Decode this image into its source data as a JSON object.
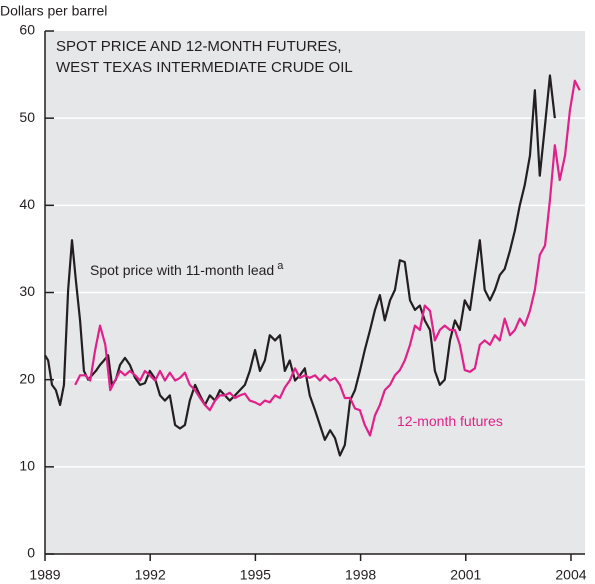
{
  "chart_data": {
    "type": "line",
    "title": [
      "SPOT PRICE AND 12-MONTH FUTURES,",
      "WEST TEXAS INTERMEDIATE CRUDE OIL"
    ],
    "ylabel": "Dollars per barrel",
    "xlim": [
      1989,
      2004.4
    ],
    "ylim": [
      0,
      60
    ],
    "xticks": [
      1989,
      1992,
      1995,
      1998,
      2001,
      2004
    ],
    "yticks": [
      0,
      10,
      20,
      30,
      40,
      50,
      60
    ],
    "grid": true,
    "series": [
      {
        "name": "Spot price with 11-month lead",
        "footnote_marker": "a",
        "color": "#231f20",
        "x": [
          1989.0,
          1989.09,
          1989.2,
          1989.31,
          1989.43,
          1989.54,
          1989.66,
          1989.77,
          1989.88,
          1990.0,
          1990.11,
          1990.23,
          1990.34,
          1990.45,
          1990.57,
          1990.68,
          1990.8,
          1990.91,
          1991.02,
          1991.14,
          1991.28,
          1991.42,
          1991.57,
          1991.71,
          1991.85,
          1991.99,
          1992.14,
          1992.28,
          1992.42,
          1992.56,
          1992.71,
          1992.85,
          1992.99,
          1993.13,
          1993.28,
          1993.42,
          1993.56,
          1993.7,
          1993.85,
          1993.99,
          1994.13,
          1994.27,
          1994.42,
          1994.56,
          1994.7,
          1994.84,
          1994.99,
          1995.13,
          1995.27,
          1995.41,
          1995.56,
          1995.7,
          1995.84,
          1995.98,
          1996.13,
          1996.27,
          1996.41,
          1996.55,
          1996.7,
          1996.84,
          1996.98,
          1997.13,
          1997.27,
          1997.41,
          1997.55,
          1997.7,
          1997.84,
          1997.98,
          1998.12,
          1998.27,
          1998.41,
          1998.55,
          1998.69,
          1998.84,
          1998.98,
          1999.12,
          1999.26,
          1999.41,
          1999.55,
          1999.69,
          1999.83,
          1999.98,
          2000.12,
          2000.26,
          2000.4,
          2000.55,
          2000.69,
          2000.83,
          2000.97,
          2001.12,
          2001.26,
          2001.4,
          2001.54,
          2001.69,
          2001.83,
          2001.97,
          2002.11,
          2002.26,
          2002.4,
          2002.54,
          2002.68,
          2002.83,
          2002.97,
          2003.11,
          2003.26,
          2003.4,
          2003.54
        ],
        "values": [
          22.8,
          22.2,
          19.4,
          18.8,
          17.1,
          19.4,
          30.3,
          36,
          31.4,
          26.8,
          21,
          20,
          20.5,
          21,
          21.7,
          22.2,
          22.8,
          19.4,
          20,
          21.7,
          22.5,
          21.7,
          20.2,
          19.4,
          19.6,
          21,
          20.1,
          18.2,
          17.6,
          18.2,
          14.8,
          14.4,
          14.8,
          17.6,
          19.4,
          18.2,
          17.1,
          18.2,
          17.6,
          18.8,
          18.2,
          17.6,
          18.2,
          18.8,
          19.4,
          21,
          23.4,
          21,
          22.2,
          25.1,
          24.5,
          25.1,
          21,
          22.2,
          19.9,
          20.5,
          21.3,
          18.2,
          16.5,
          14.8,
          13.1,
          14.2,
          13.3,
          11.3,
          12.5,
          17.6,
          18.8,
          21,
          23.4,
          25.7,
          28,
          29.7,
          26.8,
          29.1,
          30.3,
          33.7,
          33.5,
          29.1,
          28,
          28.5,
          26.8,
          25.7,
          21,
          19.4,
          20,
          24.5,
          26.8,
          25.7,
          29.1,
          28,
          32,
          36,
          30.3,
          29.1,
          30.3,
          32,
          32.7,
          34.8,
          37.1,
          40,
          42.3,
          45.7,
          53.2,
          43.4,
          49.2,
          54.9,
          50
        ]
      },
      {
        "name": "12-month futures",
        "color": "#e0218a",
        "x": [
          1989.86,
          1990.0,
          1990.15,
          1990.29,
          1990.43,
          1990.57,
          1990.72,
          1990.86,
          1991.0,
          1991.14,
          1991.28,
          1991.42,
          1991.57,
          1991.71,
          1991.85,
          1991.99,
          1992.14,
          1992.28,
          1992.42,
          1992.56,
          1992.71,
          1992.85,
          1992.99,
          1993.13,
          1993.28,
          1993.42,
          1993.56,
          1993.7,
          1993.85,
          1993.99,
          1994.13,
          1994.27,
          1994.42,
          1994.56,
          1994.7,
          1994.84,
          1994.99,
          1995.13,
          1995.27,
          1995.41,
          1995.56,
          1995.7,
          1995.84,
          1995.98,
          1996.13,
          1996.27,
          1996.41,
          1996.55,
          1996.7,
          1996.84,
          1996.98,
          1997.13,
          1997.27,
          1997.41,
          1997.55,
          1997.7,
          1997.84,
          1997.98,
          1998.12,
          1998.27,
          1998.41,
          1998.55,
          1998.69,
          1998.84,
          1998.98,
          1999.12,
          1999.26,
          1999.41,
          1999.55,
          1999.69,
          1999.83,
          1999.98,
          2000.12,
          2000.26,
          2000.4,
          2000.55,
          2000.69,
          2000.83,
          2000.97,
          2001.12,
          2001.26,
          2001.4,
          2001.54,
          2001.69,
          2001.83,
          2001.97,
          2002.11,
          2002.26,
          2002.4,
          2002.54,
          2002.68,
          2002.83,
          2002.97,
          2003.11,
          2003.26,
          2003.4,
          2003.54,
          2003.68,
          2003.83,
          2003.97,
          2004.11,
          2004.25
        ],
        "values": [
          19.4,
          20.5,
          20.5,
          19.9,
          23.4,
          26.2,
          24,
          18.8,
          19.9,
          21,
          20.5,
          21,
          20.5,
          19.9,
          21,
          20.5,
          19.9,
          21,
          19.9,
          20.8,
          19.9,
          20.2,
          20.8,
          19.4,
          18.8,
          17.9,
          17.1,
          16.5,
          17.6,
          18.2,
          18.2,
          18.5,
          17.9,
          18.2,
          18.4,
          17.6,
          17.4,
          17.1,
          17.6,
          17.4,
          18.2,
          17.9,
          19.1,
          19.9,
          21.3,
          20.2,
          20.5,
          20.2,
          20.5,
          19.9,
          20.5,
          19.9,
          20.2,
          19.4,
          17.9,
          17.9,
          16.7,
          16.5,
          14.8,
          13.6,
          15.9,
          17.1,
          18.8,
          19.4,
          20.5,
          21.1,
          22.2,
          24,
          26.2,
          25.7,
          28.5,
          27.9,
          24.5,
          25.7,
          26.2,
          25.7,
          25.7,
          24,
          21.1,
          20.9,
          21.3,
          24,
          24.5,
          24,
          25.1,
          24.5,
          27,
          25.1,
          25.7,
          27,
          26.2,
          27.9,
          30.3,
          34.3,
          35.4,
          40.6,
          46.9,
          42.9,
          45.7,
          50.9,
          54.3,
          53.2
        ]
      }
    ]
  }
}
